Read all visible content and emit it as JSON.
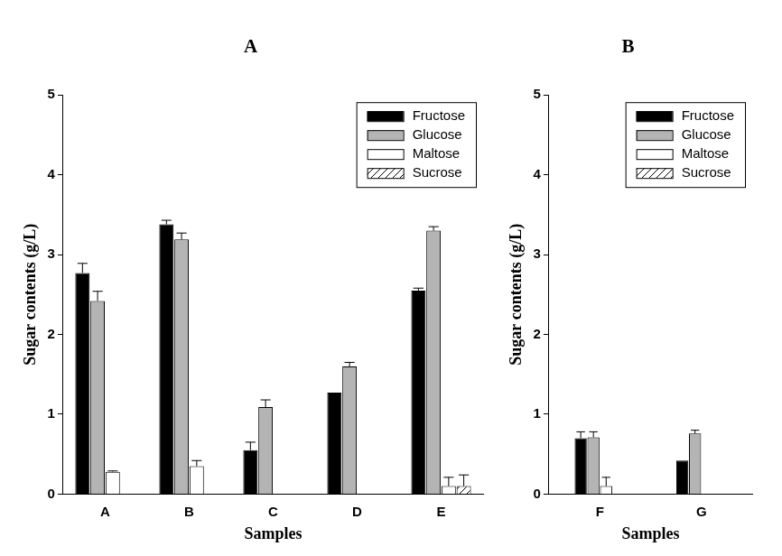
{
  "chart_data": [
    {
      "type": "bar",
      "title": "A",
      "x_label": "Samples",
      "y_label": "Sugar contents (g/L)",
      "categories": [
        "A",
        "B",
        "C",
        "D",
        "E"
      ],
      "series": [
        {
          "name": "Fructose",
          "color": "#000000",
          "values": [
            2.77,
            3.38,
            0.55,
            1.27,
            2.55
          ],
          "errors": [
            0.12,
            0.05,
            0.1,
            null,
            0.03
          ]
        },
        {
          "name": "Glucose",
          "color": "#b4b4b4",
          "values": [
            2.42,
            3.19,
            1.09,
            1.6,
            3.3
          ],
          "errors": [
            0.12,
            0.08,
            0.09,
            0.05,
            0.05
          ]
        },
        {
          "name": "Maltose",
          "color": "#ffffff",
          "values": [
            0.28,
            0.35,
            0,
            0,
            0.1
          ],
          "errors": [
            0.01,
            0.07,
            null,
            null,
            0.11
          ]
        },
        {
          "name": "Sucrose",
          "color": "#ffffff",
          "values": [
            0,
            0,
            0,
            0,
            0.1
          ],
          "errors": [
            null,
            null,
            null,
            null,
            0.14
          ]
        }
      ],
      "ylim": [
        0,
        5
      ],
      "yticks": [
        0,
        1,
        2,
        3,
        4,
        5
      ],
      "grid": false,
      "legend": "upper right"
    },
    {
      "type": "bar",
      "title": "B",
      "x_label": "Samples",
      "y_label": "Sugar contents (g/L)",
      "categories": [
        "F",
        "G"
      ],
      "series": [
        {
          "name": "Fructose",
          "color": "#000000",
          "values": [
            0.7,
            0.42
          ],
          "errors": [
            0.08,
            null
          ]
        },
        {
          "name": "Glucose",
          "color": "#b4b4b4",
          "values": [
            0.71,
            0.76
          ],
          "errors": [
            0.07,
            0.04
          ]
        },
        {
          "name": "Maltose",
          "color": "#ffffff",
          "values": [
            0.1,
            0
          ],
          "errors": [
            0.11,
            null
          ]
        },
        {
          "name": "Sucrose",
          "color": "#ffffff",
          "values": [
            0,
            0
          ],
          "errors": [
            null,
            null
          ]
        }
      ],
      "ylim": [
        0,
        5
      ],
      "yticks": [
        0,
        1,
        2,
        3,
        4,
        5
      ],
      "grid": false,
      "legend": "upper right"
    }
  ]
}
